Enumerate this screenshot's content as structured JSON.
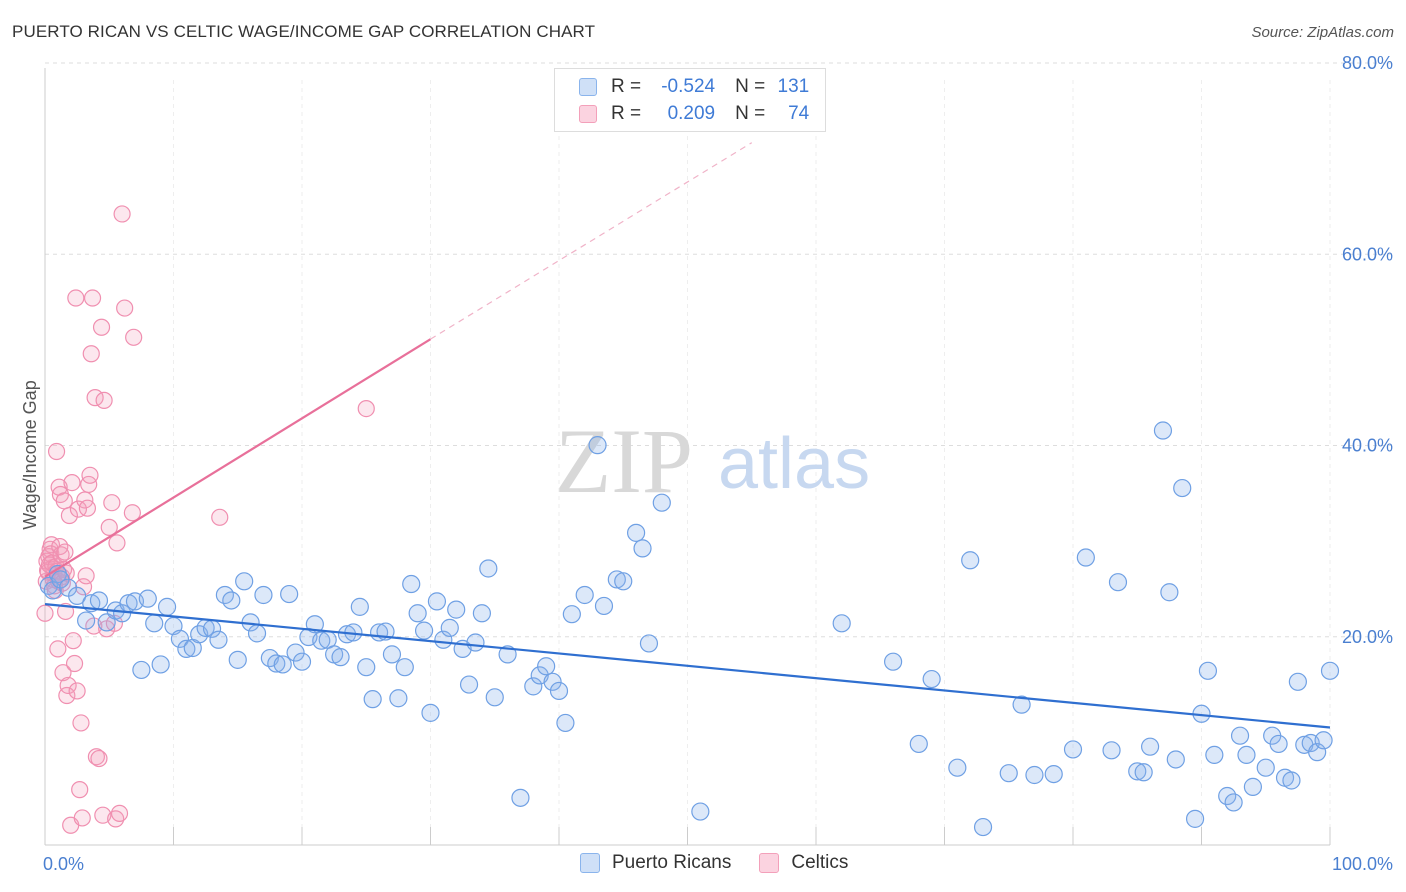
{
  "header": {
    "title": "PUERTO RICAN VS CELTIC WAGE/INCOME GAP CORRELATION CHART",
    "source": "Source: ZipAtlas.com"
  },
  "watermark": {
    "zip": "ZIP",
    "atlas": "atlas"
  },
  "legend": {
    "r_label": "R =",
    "n_label": "N =",
    "rows": [
      {
        "r": "-0.524",
        "n": "131",
        "color": "#8ab4ec"
      },
      {
        "r": "0.209",
        "n": "74",
        "color": "#f3a0ba"
      }
    ]
  },
  "bottom_legend": [
    {
      "label": "Puerto Ricans",
      "color": "#8ab4ec"
    },
    {
      "label": "Celtics",
      "color": "#f3a0ba"
    }
  ],
  "chart_data": {
    "type": "scatter",
    "title": "PUERTO RICAN VS CELTIC WAGE/INCOME GAP CORRELATION CHART",
    "xlabel": "",
    "ylabel": "Wage/Income Gap",
    "xlim": [
      0,
      100
    ],
    "ylim": [
      0,
      80
    ],
    "x_ticks": [
      "0.0%",
      "100.0%"
    ],
    "y_ticks": [
      "20.0%",
      "40.0%",
      "60.0%",
      "80.0%"
    ],
    "y_tick_values": [
      20,
      40,
      60,
      80
    ],
    "grid": true,
    "colors": {
      "puerto_ricans": "#4a86dc",
      "celtics": "#e8709a"
    },
    "series": [
      {
        "name": "Puerto Ricans",
        "trend": {
          "x0": 0,
          "y0": 24.5,
          "x1": 100,
          "y1": 11.0
        },
        "points": [
          [
            0.3,
            26.5
          ],
          [
            0.6,
            26
          ],
          [
            1.0,
            27.8
          ],
          [
            1.2,
            27.2
          ],
          [
            1.8,
            26.3
          ],
          [
            2.5,
            25.4
          ],
          [
            3.2,
            22.7
          ],
          [
            3.6,
            24.6
          ],
          [
            4.2,
            24.9
          ],
          [
            4.8,
            22.5
          ],
          [
            5.5,
            23.8
          ],
          [
            6.0,
            23.5
          ],
          [
            6.5,
            24.6
          ],
          [
            7.0,
            24.8
          ],
          [
            7.5,
            17.3
          ],
          [
            8.0,
            25.1
          ],
          [
            8.5,
            22.4
          ],
          [
            9.0,
            17.9
          ],
          [
            9.5,
            24.2
          ],
          [
            10.0,
            22.1
          ],
          [
            10.5,
            20.7
          ],
          [
            11.0,
            19.6
          ],
          [
            11.5,
            19.7
          ],
          [
            12.0,
            21.2
          ],
          [
            12.5,
            21.9
          ],
          [
            13.0,
            21.8
          ],
          [
            13.5,
            20.6
          ],
          [
            14.0,
            25.5
          ],
          [
            14.5,
            24.9
          ],
          [
            15.0,
            18.4
          ],
          [
            15.5,
            27.0
          ],
          [
            16.0,
            22.5
          ],
          [
            16.5,
            21.3
          ],
          [
            17.0,
            25.5
          ],
          [
            17.5,
            18.6
          ],
          [
            18.0,
            18.0
          ],
          [
            18.5,
            17.9
          ],
          [
            19.0,
            25.6
          ],
          [
            19.5,
            19.2
          ],
          [
            20.0,
            18.2
          ],
          [
            20.5,
            20.9
          ],
          [
            21.0,
            22.3
          ],
          [
            21.5,
            20.5
          ],
          [
            22.0,
            20.6
          ],
          [
            22.5,
            19.0
          ],
          [
            23.0,
            18.7
          ],
          [
            23.5,
            21.2
          ],
          [
            24.0,
            21.4
          ],
          [
            24.5,
            24.2
          ],
          [
            25.0,
            17.6
          ],
          [
            25.5,
            14.1
          ],
          [
            26.0,
            21.4
          ],
          [
            26.5,
            21.5
          ],
          [
            27.0,
            19.0
          ],
          [
            27.5,
            14.2
          ],
          [
            28.0,
            17.6
          ],
          [
            28.5,
            26.7
          ],
          [
            29.0,
            23.5
          ],
          [
            29.5,
            21.6
          ],
          [
            30.0,
            12.6
          ],
          [
            30.5,
            24.8
          ],
          [
            31.0,
            20.6
          ],
          [
            31.5,
            21.9
          ],
          [
            32.0,
            23.9
          ],
          [
            32.5,
            19.6
          ],
          [
            33.0,
            15.7
          ],
          [
            33.5,
            20.3
          ],
          [
            34.0,
            23.5
          ],
          [
            34.5,
            28.4
          ],
          [
            35.0,
            14.3
          ],
          [
            36.0,
            19.0
          ],
          [
            37.0,
            3.3
          ],
          [
            38.0,
            15.5
          ],
          [
            38.5,
            16.7
          ],
          [
            39.0,
            17.7
          ],
          [
            39.5,
            16.0
          ],
          [
            40.0,
            15.0
          ],
          [
            40.5,
            11.5
          ],
          [
            41.0,
            23.4
          ],
          [
            42.0,
            25.5
          ],
          [
            43.0,
            41.9
          ],
          [
            43.5,
            24.3
          ],
          [
            44.5,
            27.2
          ],
          [
            45.0,
            27.0
          ],
          [
            46.0,
            32.3
          ],
          [
            46.5,
            30.6
          ],
          [
            47.0,
            20.2
          ],
          [
            48.0,
            35.6
          ],
          [
            51.0,
            1.8
          ],
          [
            62.0,
            22.4
          ],
          [
            66.0,
            18.2
          ],
          [
            68.0,
            9.2
          ],
          [
            69.0,
            16.3
          ],
          [
            71.0,
            6.6
          ],
          [
            72.0,
            29.3
          ],
          [
            73.0,
            0.1
          ],
          [
            75.0,
            6.0
          ],
          [
            76.0,
            13.5
          ],
          [
            77.0,
            5.8
          ],
          [
            78.5,
            5.9
          ],
          [
            80.0,
            8.6
          ],
          [
            81.0,
            29.6
          ],
          [
            83.0,
            8.5
          ],
          [
            83.5,
            26.9
          ],
          [
            85.0,
            6.2
          ],
          [
            85.5,
            6.1
          ],
          [
            86.0,
            8.9
          ],
          [
            87.0,
            43.5
          ],
          [
            87.5,
            25.8
          ],
          [
            88.0,
            7.5
          ],
          [
            88.5,
            37.2
          ],
          [
            89.5,
            1.0
          ],
          [
            90.0,
            12.5
          ],
          [
            90.5,
            17.2
          ],
          [
            91.0,
            8.0
          ],
          [
            92.0,
            3.5
          ],
          [
            92.5,
            2.8
          ],
          [
            93.0,
            10.1
          ],
          [
            93.5,
            8.0
          ],
          [
            94.0,
            4.5
          ],
          [
            95.0,
            6.6
          ],
          [
            95.5,
            10.1
          ],
          [
            96.0,
            9.2
          ],
          [
            96.5,
            5.5
          ],
          [
            97.0,
            5.2
          ],
          [
            97.5,
            16.0
          ],
          [
            98.0,
            9.1
          ],
          [
            98.5,
            9.3
          ],
          [
            99.0,
            8.3
          ],
          [
            99.5,
            9.6
          ],
          [
            100.0,
            17.2
          ]
        ]
      },
      {
        "name": "Celtics",
        "trend": {
          "x0": 0,
          "y0": 27.5,
          "x1": 30.0,
          "y1": 53.5,
          "dash_to": {
            "x": 55.0,
            "y": 75.0
          }
        },
        "points": [
          [
            0.0,
            23.5
          ],
          [
            0.1,
            27.0
          ],
          [
            0.2,
            28.2
          ],
          [
            0.3,
            29.7
          ],
          [
            0.4,
            30.5
          ],
          [
            0.5,
            31.0
          ],
          [
            0.6,
            28.5
          ],
          [
            0.7,
            27.8
          ],
          [
            0.8,
            26.0
          ],
          [
            0.9,
            41.2
          ],
          [
            1.0,
            19.6
          ],
          [
            1.1,
            37.3
          ],
          [
            1.2,
            36.5
          ],
          [
            1.3,
            27.5
          ],
          [
            1.4,
            17.0
          ],
          [
            1.5,
            35.8
          ],
          [
            1.6,
            23.7
          ],
          [
            1.7,
            14.5
          ],
          [
            1.8,
            15.6
          ],
          [
            1.9,
            34.2
          ],
          [
            2.0,
            0.3
          ],
          [
            2.1,
            37.8
          ],
          [
            2.2,
            20.5
          ],
          [
            2.3,
            18.0
          ],
          [
            2.4,
            58.0
          ],
          [
            2.5,
            15.0
          ],
          [
            2.6,
            34.9
          ],
          [
            2.7,
            4.2
          ],
          [
            2.8,
            11.5
          ],
          [
            2.9,
            1.1
          ],
          [
            3.0,
            26.4
          ],
          [
            3.1,
            35.9
          ],
          [
            3.2,
            27.6
          ],
          [
            3.3,
            35.0
          ],
          [
            3.4,
            37.6
          ],
          [
            3.5,
            38.6
          ],
          [
            3.6,
            51.9
          ],
          [
            3.7,
            58.0
          ],
          [
            3.8,
            22.1
          ],
          [
            3.9,
            47.1
          ],
          [
            4.0,
            7.8
          ],
          [
            4.2,
            7.6
          ],
          [
            4.4,
            54.8
          ],
          [
            4.5,
            1.4
          ],
          [
            4.6,
            46.8
          ],
          [
            4.8,
            21.8
          ],
          [
            5.0,
            32.9
          ],
          [
            5.2,
            35.6
          ],
          [
            5.4,
            22.4
          ],
          [
            5.5,
            1.0
          ],
          [
            5.6,
            31.2
          ],
          [
            5.8,
            1.6
          ],
          [
            6.0,
            67.2
          ],
          [
            6.2,
            56.9
          ],
          [
            6.8,
            34.5
          ],
          [
            6.9,
            53.7
          ],
          [
            13.6,
            34.0
          ],
          [
            25.0,
            45.9
          ],
          [
            0.15,
            29.2
          ],
          [
            0.25,
            28.0
          ],
          [
            0.35,
            28.8
          ],
          [
            0.45,
            30.0
          ],
          [
            0.55,
            29.0
          ],
          [
            0.65,
            27.2
          ],
          [
            0.75,
            26.5
          ],
          [
            0.85,
            28.6
          ],
          [
            0.95,
            28.1
          ],
          [
            1.05,
            27.0
          ],
          [
            1.15,
            30.8
          ],
          [
            1.25,
            29.9
          ],
          [
            1.35,
            26.8
          ],
          [
            1.45,
            28.3
          ],
          [
            1.55,
            30.2
          ],
          [
            1.65,
            27.9
          ]
        ]
      }
    ]
  }
}
